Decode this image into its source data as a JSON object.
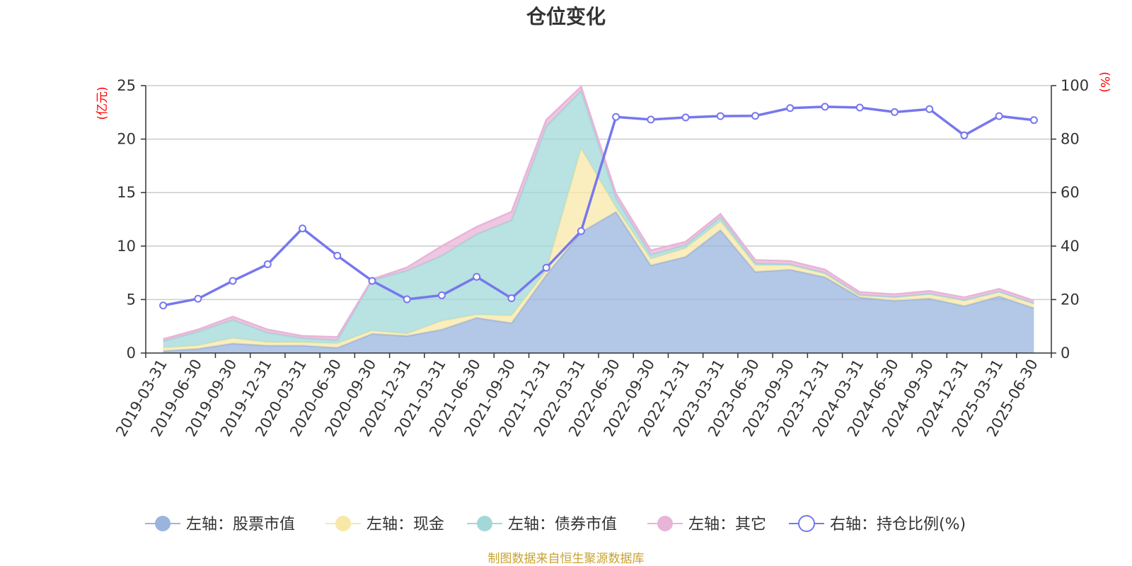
{
  "chart_data": {
    "type": "area",
    "title": "仓位变化",
    "left_axis_unit": "(亿元)",
    "right_axis_unit": "(%)",
    "categories": [
      "2019-03-31",
      "2019-06-30",
      "2019-09-30",
      "2019-12-31",
      "2020-03-31",
      "2020-06-30",
      "2020-09-30",
      "2020-12-31",
      "2021-03-31",
      "2021-06-30",
      "2021-09-30",
      "2021-12-31",
      "2022-03-31",
      "2022-06-30",
      "2022-09-30",
      "2022-12-31",
      "2023-03-31",
      "2023-06-30",
      "2023-09-30",
      "2023-12-31",
      "2024-03-31",
      "2024-06-30",
      "2024-09-30",
      "2024-12-31",
      "2025-03-31",
      "2025-06-30"
    ],
    "left_ylim": [
      0,
      25
    ],
    "left_yticks": [
      0,
      5,
      10,
      15,
      20,
      25
    ],
    "right_ylim": [
      0,
      100
    ],
    "right_yticks": [
      0,
      20,
      40,
      60,
      80,
      100
    ],
    "grid": true,
    "legend_position": "bottom",
    "series": [
      {
        "name": "左轴：股票市值",
        "axis": "left",
        "kind": "stacked-area",
        "color": "#9ab4de",
        "values": [
          0.2,
          0.4,
          0.9,
          0.7,
          0.7,
          0.5,
          1.8,
          1.6,
          2.2,
          3.3,
          2.8,
          7.3,
          11.3,
          13.2,
          8.2,
          9.0,
          11.5,
          7.6,
          7.8,
          7.1,
          5.2,
          4.9,
          5.1,
          4.4,
          5.3,
          4.2
        ]
      },
      {
        "name": "左轴：现金",
        "axis": "left",
        "kind": "stacked-area",
        "color": "#f8e8a8",
        "values": [
          0.3,
          0.3,
          0.5,
          0.3,
          0.3,
          0.4,
          0.3,
          0.2,
          0.8,
          0.3,
          0.7,
          0.4,
          7.8,
          0.4,
          0.6,
          0.8,
          0.8,
          0.6,
          0.4,
          0.3,
          0.2,
          0.3,
          0.4,
          0.5,
          0.4,
          0.4
        ]
      },
      {
        "name": "左轴：债券市值",
        "axis": "left",
        "kind": "stacked-area",
        "color": "#a2d8d8",
        "values": [
          0.6,
          1.3,
          1.7,
          0.9,
          0.4,
          0.3,
          4.7,
          5.9,
          6.1,
          7.5,
          8.9,
          13.5,
          5.4,
          0.9,
          0.4,
          0.3,
          0.4,
          0.2,
          0.1,
          0.1,
          0.05,
          0.05,
          0.05,
          0.05,
          0.05,
          0.05
        ]
      },
      {
        "name": "左轴：其它",
        "axis": "left",
        "kind": "stacked-area",
        "color": "#e8b4d8",
        "values": [
          0.2,
          0.2,
          0.3,
          0.3,
          0.2,
          0.3,
          0.1,
          0.3,
          0.9,
          0.7,
          0.8,
          0.6,
          0.4,
          0.4,
          0.4,
          0.3,
          0.3,
          0.3,
          0.3,
          0.3,
          0.25,
          0.25,
          0.25,
          0.25,
          0.25,
          0.25
        ]
      },
      {
        "name": "右轴：持仓比例(%)",
        "axis": "right",
        "kind": "line",
        "color": "#7777ee",
        "values": [
          17.8,
          20.3,
          27.0,
          33.2,
          46.6,
          36.4,
          27.0,
          20.1,
          21.6,
          28.5,
          20.5,
          31.9,
          45.6,
          88.3,
          87.3,
          88.1,
          88.6,
          88.7,
          91.6,
          92.1,
          91.8,
          90.1,
          91.2,
          81.4,
          88.6,
          87.1
        ]
      }
    ],
    "source_note": "制图数据来自恒生聚源数据库"
  }
}
